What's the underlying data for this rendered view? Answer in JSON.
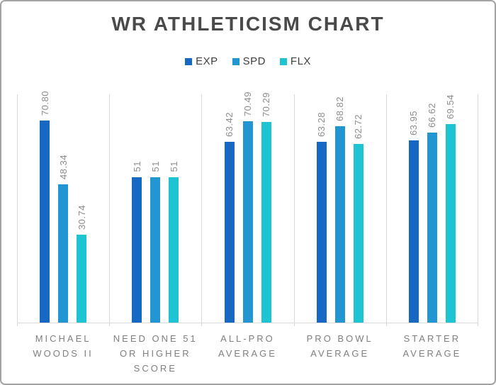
{
  "chart_data": {
    "type": "bar",
    "title": "WR ATHLETICISM CHART",
    "legend_position": "top",
    "grid": "vertical category separators + baseline only",
    "data_labels": "rotated 90deg above bars",
    "ylim": [
      0,
      80
    ],
    "categories": [
      "MICHAEL WOODS II",
      "NEED ONE 51 OR HIGHER SCORE",
      "ALL-PRO AVERAGE",
      "PRO BOWL AVERAGE",
      "STARTER AVERAGE"
    ],
    "series": [
      {
        "name": "EXP",
        "color": "#1668c3",
        "values": [
          70.8,
          51,
          63.42,
          63.28,
          63.95
        ],
        "labels": [
          "70.80",
          "51",
          "63.42",
          "63.28",
          "63.95"
        ]
      },
      {
        "name": "SPD",
        "color": "#2196d3",
        "values": [
          48.34,
          51,
          70.49,
          68.82,
          66.62
        ],
        "labels": [
          "48.34",
          "51",
          "70.49",
          "68.82",
          "66.62"
        ]
      },
      {
        "name": "FLX",
        "color": "#1fc4d2",
        "values": [
          30.74,
          51,
          70.29,
          62.72,
          69.54
        ],
        "labels": [
          "30.74",
          "51",
          "70.29",
          "62.72",
          "69.54"
        ]
      }
    ],
    "colors": {
      "title_text": "#4a4a4a",
      "legend_text": "#3f3f3f",
      "value_label_text": "#8c8c8c",
      "category_label_text": "#7f7f7f",
      "axis_line": "#d9d9d9",
      "frame_border": "#a3a3a3",
      "background": "#ffffff"
    }
  }
}
